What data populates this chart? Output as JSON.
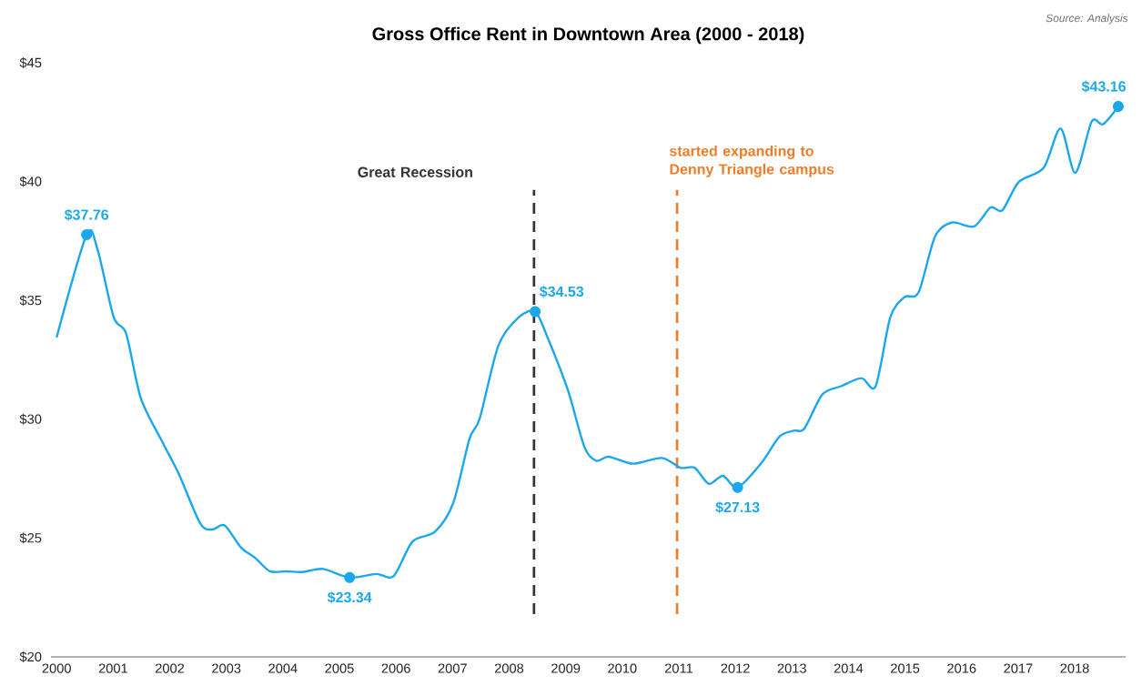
{
  "chart_data": {
    "type": "line",
    "title": "Gross Office Rent in Downtown Area (2000 - 2018)",
    "xlim": [
      1999.9,
      2018.9
    ],
    "ylim": [
      20,
      45
    ],
    "xticks": [
      2000,
      2001,
      2002,
      2003,
      2004,
      2005,
      2006,
      2007,
      2008,
      2009,
      2010,
      2011,
      2012,
      2013,
      2014,
      2015,
      2016,
      2017,
      2018
    ],
    "yticks": [
      {
        "value": 20,
        "label": "$20"
      },
      {
        "value": 25,
        "label": "$25"
      },
      {
        "value": 30,
        "label": "$30"
      },
      {
        "value": 35,
        "label": "$35"
      },
      {
        "value": 40,
        "label": "$40"
      },
      {
        "value": 45,
        "label": "$45"
      }
    ],
    "grid": false,
    "series": [
      {
        "color": "#1aa7ec",
        "x": [
          2000.0,
          2000.53,
          2000.72,
          2001.01,
          2001.23,
          2001.49,
          2001.88,
          2002.17,
          2002.54,
          2002.75,
          2002.97,
          2003.26,
          2003.51,
          2003.77,
          2004.06,
          2004.35,
          2004.71,
          2005.18,
          2005.65,
          2005.96,
          2006.29,
          2006.69,
          2007.01,
          2007.3,
          2007.48,
          2007.81,
          2008.17,
          2008.46,
          2008.68,
          2009.04,
          2009.33,
          2009.54,
          2009.76,
          2010.19,
          2010.7,
          2011.03,
          2011.28,
          2011.53,
          2011.78,
          2012.04,
          2012.46,
          2012.78,
          2013.04,
          2013.22,
          2013.54,
          2013.87,
          2014.23,
          2014.48,
          2014.74,
          2014.99,
          2015.24,
          2015.53,
          2015.83,
          2016.22,
          2016.51,
          2016.72,
          2017.01,
          2017.45,
          2017.75,
          2018.01,
          2018.3,
          2018.5,
          2018.77
        ],
        "values": [
          33.44,
          37.76,
          37.18,
          34.29,
          33.6,
          30.88,
          29.0,
          27.65,
          25.61,
          25.36,
          25.53,
          24.6,
          24.17,
          23.6,
          23.6,
          23.57,
          23.7,
          23.34,
          23.49,
          23.4,
          24.85,
          25.27,
          26.46,
          29.18,
          30.03,
          33.1,
          34.29,
          34.53,
          33.44,
          31.22,
          28.84,
          28.25,
          28.42,
          28.13,
          28.37,
          27.96,
          27.96,
          27.28,
          27.62,
          27.13,
          28.16,
          29.27,
          29.52,
          29.61,
          31.05,
          31.39,
          31.73,
          31.39,
          34.29,
          35.14,
          35.34,
          37.69,
          38.28,
          38.11,
          38.91,
          38.79,
          39.98,
          40.58,
          42.24,
          40.37,
          42.53,
          42.41,
          43.16
        ]
      }
    ],
    "ref_lines": [
      {
        "axis": "x",
        "value": 2008.44,
        "label": "Great Recession",
        "color": "#333333",
        "line_style": "dashed"
      },
      {
        "axis": "x",
        "value": 2010.97,
        "label": "started expanding to Denny Triangle campus",
        "color": "#f07c2a",
        "line_style": "dashed"
      }
    ],
    "annotations": [
      {
        "text": "$37.76",
        "x": 2000.53,
        "y": 37.76
      },
      {
        "text": "$23.34",
        "x": 2005.18,
        "y": 23.34
      },
      {
        "text": "$34.53",
        "x": 2008.46,
        "y": 34.53
      },
      {
        "text": "$27.13",
        "x": 2012.04,
        "y": 27.13
      },
      {
        "text": "$43.16",
        "x": 2018.77,
        "y": 43.16
      },
      "Source: Analysis"
    ]
  }
}
